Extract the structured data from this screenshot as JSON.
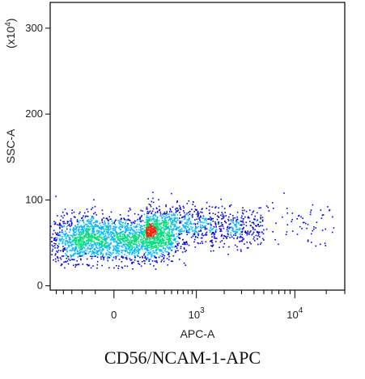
{
  "chart_data": {
    "type": "scatter",
    "title": "",
    "xlabel": "APC-A",
    "ylabel": "SSC-A",
    "y_multiplier": "(x10",
    "y_multiplier_exp": "4",
    "y_multiplier_close": ")",
    "x_scale": "biexponential",
    "y_scale": "linear",
    "xlim": [
      -600,
      30000
    ],
    "ylim": [
      -5,
      330
    ],
    "x_major_ticks": [
      {
        "value": 0,
        "label": "0",
        "exp": ""
      },
      {
        "value": 1000,
        "label": "10",
        "exp": "3"
      },
      {
        "value": 10000,
        "label": "10",
        "exp": "4"
      }
    ],
    "y_ticks": [
      {
        "value": 0,
        "label": "0"
      },
      {
        "value": 100,
        "label": "100"
      },
      {
        "value": 200,
        "label": "200"
      },
      {
        "value": 300,
        "label": "300"
      }
    ],
    "density_colormap": [
      "#0000ee",
      "#00b8ff",
      "#00e07a",
      "#ff1a00"
    ],
    "populations": [
      {
        "type": "core",
        "x_center": 0,
        "y_center": 55,
        "x_spread": 260,
        "y_spread": 14,
        "share": 0.68
      },
      {
        "type": "tail",
        "x_from": 200,
        "x_to": 5000,
        "y_center": 70,
        "y_spread": 12,
        "share": 0.3
      },
      {
        "type": "sparse",
        "x_from": 5000,
        "x_to": 25000,
        "y_center": 75,
        "y_spread": 15,
        "share": 0.02
      }
    ]
  },
  "caption": "CD56/NCAM-1-APC"
}
